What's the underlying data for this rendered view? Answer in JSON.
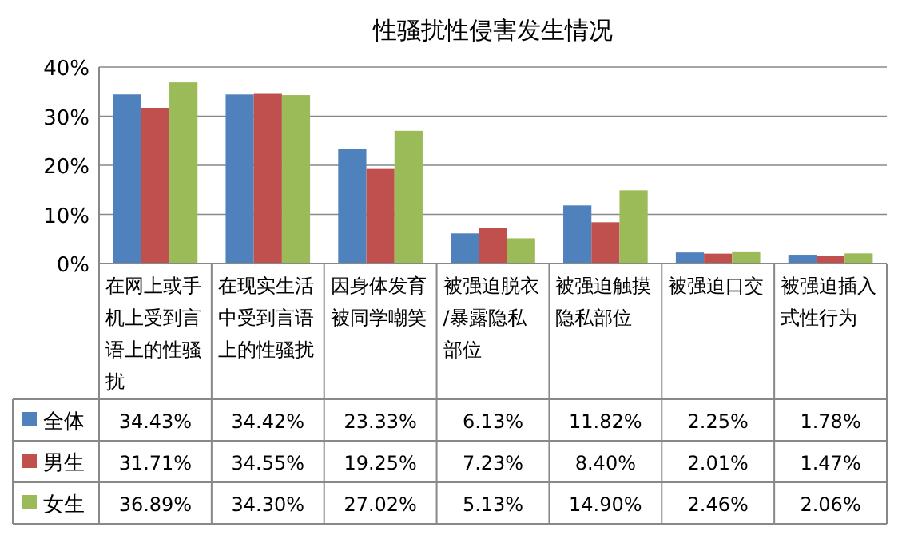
{
  "chart_data": {
    "type": "bar",
    "title": "性骚扰性侵害发生情况",
    "categories": [
      "在网上或手机上受到言语上的性骚扰",
      "在现实生活中受到言语上的性骚扰",
      "因身体发育被同学嘲笑",
      "被强迫脱衣/暴露隐私部位",
      "被强迫触摸隐私部位",
      "被强迫口交",
      "被强迫插入式性行为"
    ],
    "series": [
      {
        "name": "全体",
        "color": "#4f81bd",
        "values": [
          34.43,
          34.42,
          23.33,
          6.13,
          11.82,
          2.25,
          1.78
        ],
        "value_labels": [
          "34.43%",
          "34.42%",
          "23.33%",
          "6.13%",
          "11.82%",
          "2.25%",
          "1.78%"
        ]
      },
      {
        "name": "男生",
        "color": "#c0504d",
        "values": [
          31.71,
          34.55,
          19.25,
          7.23,
          8.4,
          2.01,
          1.47
        ],
        "value_labels": [
          "31.71%",
          "34.55%",
          "19.25%",
          "7.23%",
          "8.40%",
          "2.01%",
          "1.47%"
        ]
      },
      {
        "name": "女生",
        "color": "#9bbb59",
        "values": [
          36.89,
          34.3,
          27.02,
          5.13,
          14.9,
          2.46,
          2.06
        ],
        "value_labels": [
          "36.89%",
          "34.30%",
          "27.02%",
          "5.13%",
          "14.90%",
          "2.46%",
          "2.06%"
        ]
      }
    ],
    "ylim": [
      0,
      40
    ],
    "yticks": [
      {
        "value": 0,
        "label": "0%"
      },
      {
        "value": 10,
        "label": "10%"
      },
      {
        "value": 20,
        "label": "20%"
      },
      {
        "value": 30,
        "label": "30%"
      },
      {
        "value": 40,
        "label": "40%"
      }
    ],
    "grid": "y",
    "legend": "bottom"
  }
}
